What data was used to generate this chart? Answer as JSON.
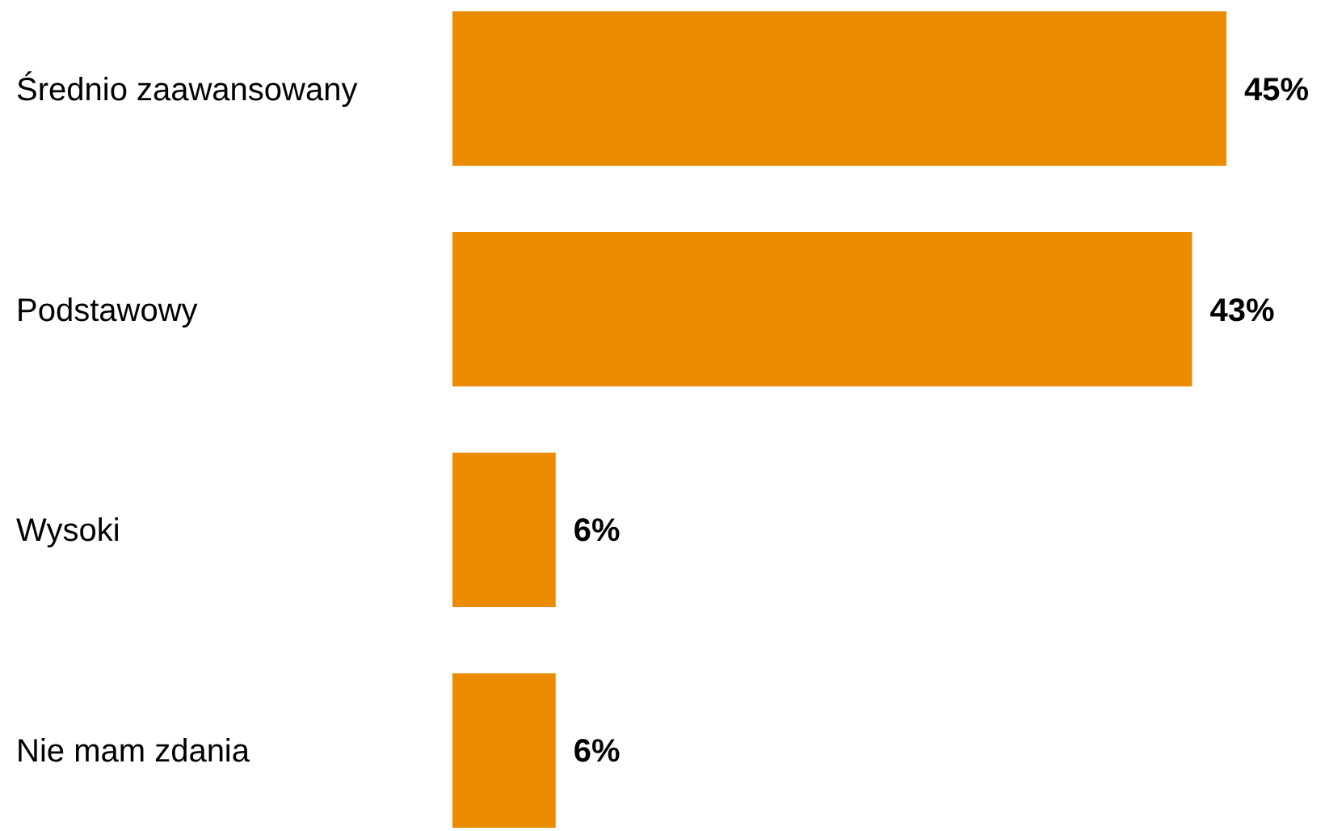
{
  "chart_data": {
    "type": "bar",
    "orientation": "horizontal",
    "categories": [
      "Średnio zaawansowany",
      "Podstawowy",
      "Wysoki",
      "Nie mam zdania"
    ],
    "values": [
      45,
      43,
      6,
      6
    ],
    "value_labels": [
      "45%",
      "43%",
      "6%",
      "6%"
    ],
    "color": "#eb8c00"
  }
}
